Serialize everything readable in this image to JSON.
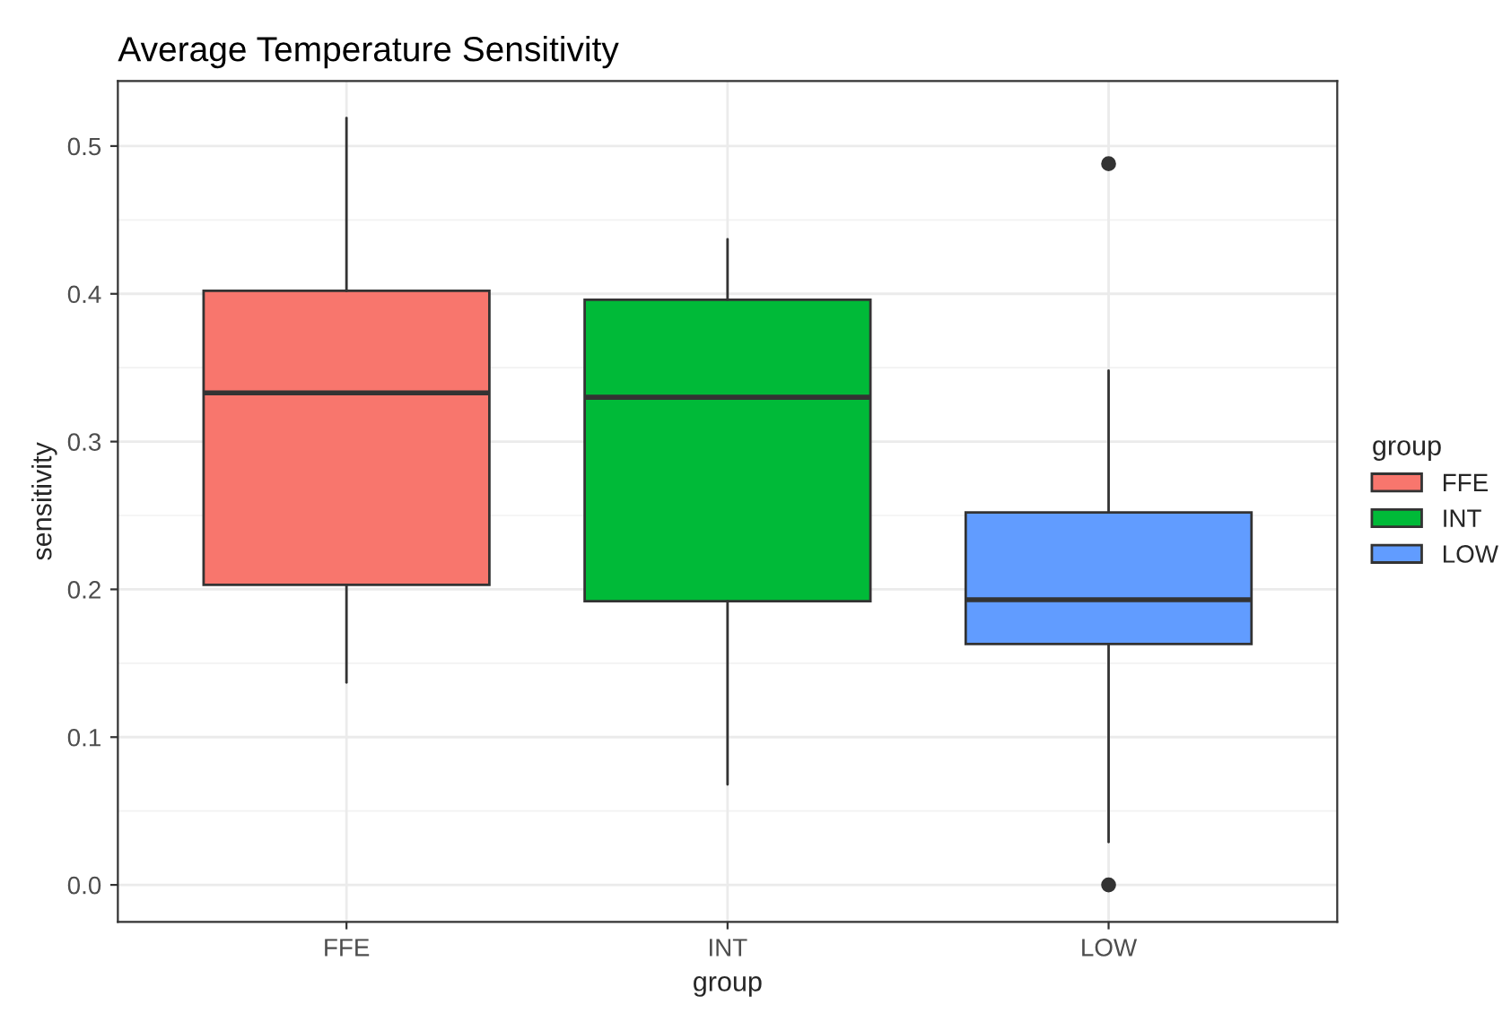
{
  "chart_data": {
    "type": "box",
    "title": "Average Temperature Sensitivity",
    "xlabel": "group",
    "ylabel": "sensitivity",
    "legend_title": "group",
    "categories": [
      "FFE",
      "INT",
      "LOW"
    ],
    "series": [
      {
        "name": "FFE",
        "color": "#f8766d",
        "boxes": [
          {
            "low": 0.137,
            "q1": 0.203,
            "median": 0.333,
            "q3": 0.402,
            "high": 0.519
          },
          null,
          null
        ]
      },
      {
        "name": "INT",
        "color": "#00ba38",
        "boxes": [
          null,
          {
            "low": 0.068,
            "q1": 0.192,
            "median": 0.33,
            "q3": 0.396,
            "high": 0.437
          },
          null
        ]
      },
      {
        "name": "LOW",
        "color": "#619cff",
        "boxes": [
          null,
          null,
          {
            "low": 0.029,
            "q1": 0.163,
            "median": 0.193,
            "q3": 0.252,
            "high": 0.348,
            "outliers": [
              0.488,
              0.0
            ]
          }
        ]
      }
    ],
    "ylim": [
      -0.025,
      0.544
    ],
    "yticks": [
      {
        "value": 0.0,
        "label": "0.0"
      },
      {
        "value": 0.1,
        "label": "0.1"
      },
      {
        "value": 0.2,
        "label": "0.2"
      },
      {
        "value": 0.3,
        "label": "0.3"
      },
      {
        "value": 0.4,
        "label": "0.4"
      },
      {
        "value": 0.5,
        "label": "0.5"
      }
    ],
    "grid": true,
    "legend": "right"
  }
}
